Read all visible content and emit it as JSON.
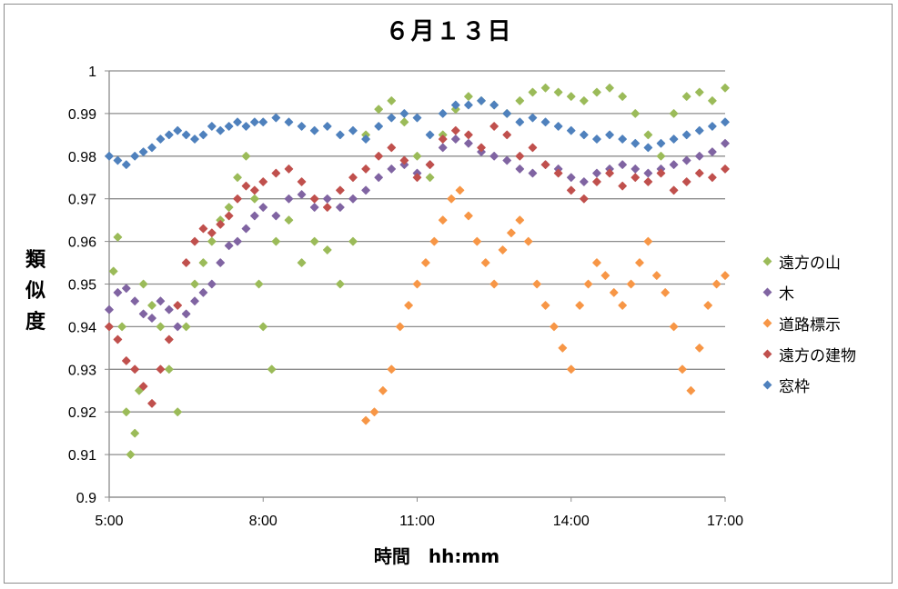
{
  "chart_data": {
    "type": "scatter",
    "title": "６月１３日",
    "xlabel": "時間　hh:mm",
    "ylabel": "類似度",
    "x_ticks": [
      "5:00",
      "8:00",
      "11:00",
      "14:00",
      "17:00"
    ],
    "y_ticks": [
      "0.9",
      "0.91",
      "0.92",
      "0.93",
      "0.94",
      "0.95",
      "0.96",
      "0.97",
      "0.98",
      "0.99",
      "1"
    ],
    "xlim": [
      "5:00",
      "17:00"
    ],
    "ylim": [
      0.9,
      1.0
    ],
    "grid": "horizontal",
    "legend_position": "right",
    "series": [
      {
        "name": "遠方の山",
        "color": "#9bbb59",
        "points": [
          [
            "5:05",
            0.953
          ],
          [
            "5:10",
            0.961
          ],
          [
            "5:15",
            0.94
          ],
          [
            "5:20",
            0.92
          ],
          [
            "5:25",
            0.91
          ],
          [
            "5:30",
            0.915
          ],
          [
            "5:35",
            0.925
          ],
          [
            "5:40",
            0.95
          ],
          [
            "5:50",
            0.945
          ],
          [
            "6:00",
            0.94
          ],
          [
            "6:10",
            0.93
          ],
          [
            "6:20",
            0.92
          ],
          [
            "6:30",
            0.94
          ],
          [
            "6:40",
            0.95
          ],
          [
            "6:50",
            0.955
          ],
          [
            "7:00",
            0.96
          ],
          [
            "7:10",
            0.965
          ],
          [
            "7:20",
            0.968
          ],
          [
            "7:30",
            0.975
          ],
          [
            "7:40",
            0.98
          ],
          [
            "7:50",
            0.97
          ],
          [
            "7:55",
            0.95
          ],
          [
            "8:00",
            0.94
          ],
          [
            "8:10",
            0.93
          ],
          [
            "8:15",
            0.96
          ],
          [
            "8:30",
            0.965
          ],
          [
            "8:45",
            0.955
          ],
          [
            "9:00",
            0.96
          ],
          [
            "9:15",
            0.958
          ],
          [
            "9:30",
            0.95
          ],
          [
            "9:45",
            0.96
          ],
          [
            "10:00",
            0.985
          ],
          [
            "10:15",
            0.991
          ],
          [
            "10:30",
            0.993
          ],
          [
            "10:45",
            0.988
          ],
          [
            "11:00",
            0.98
          ],
          [
            "11:15",
            0.975
          ],
          [
            "11:30",
            0.985
          ],
          [
            "11:45",
            0.991
          ],
          [
            "12:00",
            0.994
          ],
          [
            "12:15",
            0.993
          ],
          [
            "12:30",
            0.992
          ],
          [
            "12:45",
            0.99
          ],
          [
            "13:00",
            0.993
          ],
          [
            "13:15",
            0.995
          ],
          [
            "13:30",
            0.996
          ],
          [
            "13:45",
            0.995
          ],
          [
            "14:00",
            0.994
          ],
          [
            "14:15",
            0.993
          ],
          [
            "14:30",
            0.995
          ],
          [
            "14:45",
            0.996
          ],
          [
            "15:00",
            0.994
          ],
          [
            "15:15",
            0.99
          ],
          [
            "15:30",
            0.985
          ],
          [
            "15:45",
            0.98
          ],
          [
            "16:00",
            0.99
          ],
          [
            "16:15",
            0.994
          ],
          [
            "16:30",
            0.995
          ],
          [
            "16:45",
            0.993
          ],
          [
            "17:00",
            0.996
          ]
        ]
      },
      {
        "name": "木",
        "color": "#8064a2",
        "points": [
          [
            "5:00",
            0.944
          ],
          [
            "5:10",
            0.948
          ],
          [
            "5:20",
            0.949
          ],
          [
            "5:30",
            0.946
          ],
          [
            "5:40",
            0.943
          ],
          [
            "5:50",
            0.942
          ],
          [
            "6:00",
            0.946
          ],
          [
            "6:10",
            0.944
          ],
          [
            "6:20",
            0.94
          ],
          [
            "6:30",
            0.943
          ],
          [
            "6:40",
            0.946
          ],
          [
            "6:50",
            0.948
          ],
          [
            "7:00",
            0.95
          ],
          [
            "7:10",
            0.955
          ],
          [
            "7:20",
            0.959
          ],
          [
            "7:30",
            0.96
          ],
          [
            "7:40",
            0.963
          ],
          [
            "7:50",
            0.966
          ],
          [
            "8:00",
            0.968
          ],
          [
            "8:15",
            0.966
          ],
          [
            "8:30",
            0.97
          ],
          [
            "8:45",
            0.971
          ],
          [
            "9:00",
            0.968
          ],
          [
            "9:15",
            0.97
          ],
          [
            "9:30",
            0.968
          ],
          [
            "9:45",
            0.97
          ],
          [
            "10:00",
            0.972
          ],
          [
            "10:15",
            0.975
          ],
          [
            "10:30",
            0.977
          ],
          [
            "10:45",
            0.978
          ],
          [
            "11:00",
            0.976
          ],
          [
            "11:15",
            0.978
          ],
          [
            "11:30",
            0.982
          ],
          [
            "11:45",
            0.984
          ],
          [
            "12:00",
            0.983
          ],
          [
            "12:15",
            0.981
          ],
          [
            "12:30",
            0.98
          ],
          [
            "12:45",
            0.979
          ],
          [
            "13:00",
            0.977
          ],
          [
            "13:15",
            0.976
          ],
          [
            "13:30",
            0.978
          ],
          [
            "13:45",
            0.977
          ],
          [
            "14:00",
            0.975
          ],
          [
            "14:15",
            0.974
          ],
          [
            "14:30",
            0.976
          ],
          [
            "14:45",
            0.977
          ],
          [
            "15:00",
            0.978
          ],
          [
            "15:15",
            0.977
          ],
          [
            "15:30",
            0.976
          ],
          [
            "15:45",
            0.977
          ],
          [
            "16:00",
            0.978
          ],
          [
            "16:15",
            0.979
          ],
          [
            "16:30",
            0.98
          ],
          [
            "16:45",
            0.981
          ],
          [
            "17:00",
            0.983
          ]
        ]
      },
      {
        "name": "道路標示",
        "color": "#f79646",
        "points": [
          [
            "10:00",
            0.918
          ],
          [
            "10:10",
            0.92
          ],
          [
            "10:20",
            0.925
          ],
          [
            "10:30",
            0.93
          ],
          [
            "10:40",
            0.94
          ],
          [
            "10:50",
            0.945
          ],
          [
            "11:00",
            0.95
          ],
          [
            "11:10",
            0.955
          ],
          [
            "11:20",
            0.96
          ],
          [
            "11:30",
            0.965
          ],
          [
            "11:40",
            0.97
          ],
          [
            "11:50",
            0.972
          ],
          [
            "12:00",
            0.966
          ],
          [
            "12:10",
            0.96
          ],
          [
            "12:20",
            0.955
          ],
          [
            "12:30",
            0.95
          ],
          [
            "12:40",
            0.958
          ],
          [
            "12:50",
            0.962
          ],
          [
            "13:00",
            0.965
          ],
          [
            "13:10",
            0.96
          ],
          [
            "13:20",
            0.95
          ],
          [
            "13:30",
            0.945
          ],
          [
            "13:40",
            0.94
          ],
          [
            "13:50",
            0.935
          ],
          [
            "14:00",
            0.93
          ],
          [
            "14:10",
            0.945
          ],
          [
            "14:20",
            0.95
          ],
          [
            "14:30",
            0.955
          ],
          [
            "14:40",
            0.952
          ],
          [
            "14:50",
            0.948
          ],
          [
            "15:00",
            0.945
          ],
          [
            "15:10",
            0.95
          ],
          [
            "15:20",
            0.955
          ],
          [
            "15:30",
            0.96
          ],
          [
            "15:40",
            0.952
          ],
          [
            "15:50",
            0.948
          ],
          [
            "16:00",
            0.94
          ],
          [
            "16:10",
            0.93
          ],
          [
            "16:20",
            0.925
          ],
          [
            "16:30",
            0.935
          ],
          [
            "16:40",
            0.945
          ],
          [
            "16:50",
            0.95
          ],
          [
            "17:00",
            0.952
          ]
        ]
      },
      {
        "name": "遠方の建物",
        "color": "#c0504d",
        "points": [
          [
            "5:00",
            0.94
          ],
          [
            "5:10",
            0.937
          ],
          [
            "5:20",
            0.932
          ],
          [
            "5:30",
            0.93
          ],
          [
            "5:40",
            0.926
          ],
          [
            "5:50",
            0.922
          ],
          [
            "6:00",
            0.93
          ],
          [
            "6:10",
            0.937
          ],
          [
            "6:20",
            0.945
          ],
          [
            "6:30",
            0.955
          ],
          [
            "6:40",
            0.96
          ],
          [
            "6:50",
            0.963
          ],
          [
            "7:00",
            0.962
          ],
          [
            "7:10",
            0.964
          ],
          [
            "7:20",
            0.966
          ],
          [
            "7:30",
            0.97
          ],
          [
            "7:40",
            0.973
          ],
          [
            "7:50",
            0.972
          ],
          [
            "8:00",
            0.974
          ],
          [
            "8:15",
            0.976
          ],
          [
            "8:30",
            0.977
          ],
          [
            "8:45",
            0.974
          ],
          [
            "9:00",
            0.97
          ],
          [
            "9:15",
            0.968
          ],
          [
            "9:30",
            0.972
          ],
          [
            "9:45",
            0.975
          ],
          [
            "10:00",
            0.977
          ],
          [
            "10:15",
            0.98
          ],
          [
            "10:30",
            0.982
          ],
          [
            "10:45",
            0.979
          ],
          [
            "11:00",
            0.975
          ],
          [
            "11:15",
            0.978
          ],
          [
            "11:30",
            0.984
          ],
          [
            "11:45",
            0.986
          ],
          [
            "12:00",
            0.985
          ],
          [
            "12:15",
            0.982
          ],
          [
            "12:30",
            0.987
          ],
          [
            "12:45",
            0.985
          ],
          [
            "13:00",
            0.98
          ],
          [
            "13:15",
            0.982
          ],
          [
            "13:30",
            0.978
          ],
          [
            "13:45",
            0.976
          ],
          [
            "14:00",
            0.972
          ],
          [
            "14:15",
            0.97
          ],
          [
            "14:30",
            0.974
          ],
          [
            "14:45",
            0.976
          ],
          [
            "15:00",
            0.973
          ],
          [
            "15:15",
            0.975
          ],
          [
            "15:30",
            0.974
          ],
          [
            "15:45",
            0.976
          ],
          [
            "16:00",
            0.972
          ],
          [
            "16:15",
            0.974
          ],
          [
            "16:30",
            0.976
          ],
          [
            "16:45",
            0.975
          ],
          [
            "17:00",
            0.977
          ]
        ]
      },
      {
        "name": "窓枠",
        "color": "#4f81bd",
        "points": [
          [
            "5:00",
            0.98
          ],
          [
            "5:10",
            0.979
          ],
          [
            "5:20",
            0.978
          ],
          [
            "5:30",
            0.98
          ],
          [
            "5:40",
            0.981
          ],
          [
            "5:50",
            0.982
          ],
          [
            "6:00",
            0.984
          ],
          [
            "6:10",
            0.985
          ],
          [
            "6:20",
            0.986
          ],
          [
            "6:30",
            0.985
          ],
          [
            "6:40",
            0.984
          ],
          [
            "6:50",
            0.985
          ],
          [
            "7:00",
            0.987
          ],
          [
            "7:10",
            0.986
          ],
          [
            "7:20",
            0.987
          ],
          [
            "7:30",
            0.988
          ],
          [
            "7:40",
            0.987
          ],
          [
            "7:50",
            0.988
          ],
          [
            "8:00",
            0.988
          ],
          [
            "8:15",
            0.989
          ],
          [
            "8:30",
            0.988
          ],
          [
            "8:45",
            0.987
          ],
          [
            "9:00",
            0.986
          ],
          [
            "9:15",
            0.987
          ],
          [
            "9:30",
            0.985
          ],
          [
            "9:45",
            0.986
          ],
          [
            "10:00",
            0.984
          ],
          [
            "10:15",
            0.987
          ],
          [
            "10:30",
            0.989
          ],
          [
            "10:45",
            0.99
          ],
          [
            "11:00",
            0.989
          ],
          [
            "11:15",
            0.985
          ],
          [
            "11:30",
            0.99
          ],
          [
            "11:45",
            0.992
          ],
          [
            "12:00",
            0.992
          ],
          [
            "12:15",
            0.993
          ],
          [
            "12:30",
            0.992
          ],
          [
            "12:45",
            0.99
          ],
          [
            "13:00",
            0.988
          ],
          [
            "13:15",
            0.989
          ],
          [
            "13:30",
            0.988
          ],
          [
            "13:45",
            0.987
          ],
          [
            "14:00",
            0.986
          ],
          [
            "14:15",
            0.985
          ],
          [
            "14:30",
            0.984
          ],
          [
            "14:45",
            0.985
          ],
          [
            "15:00",
            0.984
          ],
          [
            "15:15",
            0.983
          ],
          [
            "15:30",
            0.982
          ],
          [
            "15:45",
            0.983
          ],
          [
            "16:00",
            0.984
          ],
          [
            "16:15",
            0.985
          ],
          [
            "16:30",
            0.986
          ],
          [
            "16:45",
            0.987
          ],
          [
            "17:00",
            0.988
          ]
        ]
      }
    ]
  }
}
